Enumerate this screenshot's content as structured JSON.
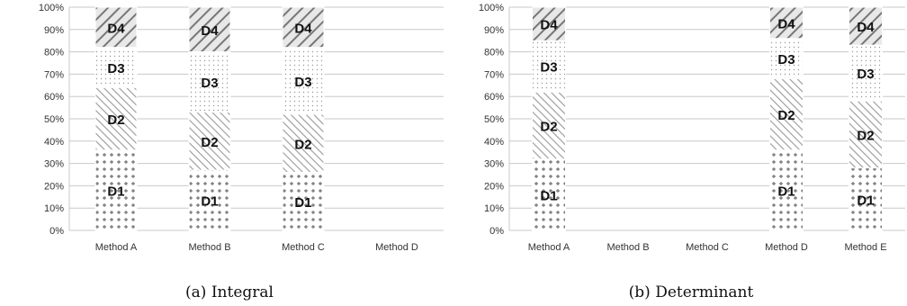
{
  "chart_data": [
    {
      "type": "bar",
      "stacked": true,
      "percent": true,
      "caption": "(a) Integral",
      "categories": [
        "Method A",
        "Method B",
        "Method C",
        "Method D"
      ],
      "y_ticks": [
        "0%",
        "10%",
        "20%",
        "30%",
        "40%",
        "50%",
        "60%",
        "70%",
        "80%",
        "90%",
        "100%"
      ],
      "ylim": [
        0,
        100
      ],
      "grid": true,
      "series": [
        {
          "name": "D1",
          "values": [
            36,
            27,
            26,
            0
          ]
        },
        {
          "name": "D2",
          "values": [
            28,
            26,
            26,
            0
          ]
        },
        {
          "name": "D3",
          "values": [
            18,
            27,
            30,
            0
          ]
        },
        {
          "name": "D4",
          "values": [
            18,
            20,
            18,
            0
          ]
        }
      ]
    },
    {
      "type": "bar",
      "stacked": true,
      "percent": true,
      "caption": "(b) Determinant",
      "categories": [
        "Method A",
        "Method B",
        "Method C",
        "Method D",
        "Method E"
      ],
      "y_ticks": [
        "0%",
        "10%",
        "20%",
        "30%",
        "40%",
        "50%",
        "60%",
        "70%",
        "80%",
        "90%",
        "100%"
      ],
      "ylim": [
        0,
        100
      ],
      "grid": true,
      "series": [
        {
          "name": "D1",
          "values": [
            32,
            0,
            0,
            36,
            28
          ]
        },
        {
          "name": "D2",
          "values": [
            30,
            0,
            0,
            32,
            30
          ]
        },
        {
          "name": "D3",
          "values": [
            23,
            0,
            0,
            18,
            25
          ]
        },
        {
          "name": "D4",
          "values": [
            15,
            0,
            0,
            14,
            17
          ]
        }
      ]
    }
  ]
}
